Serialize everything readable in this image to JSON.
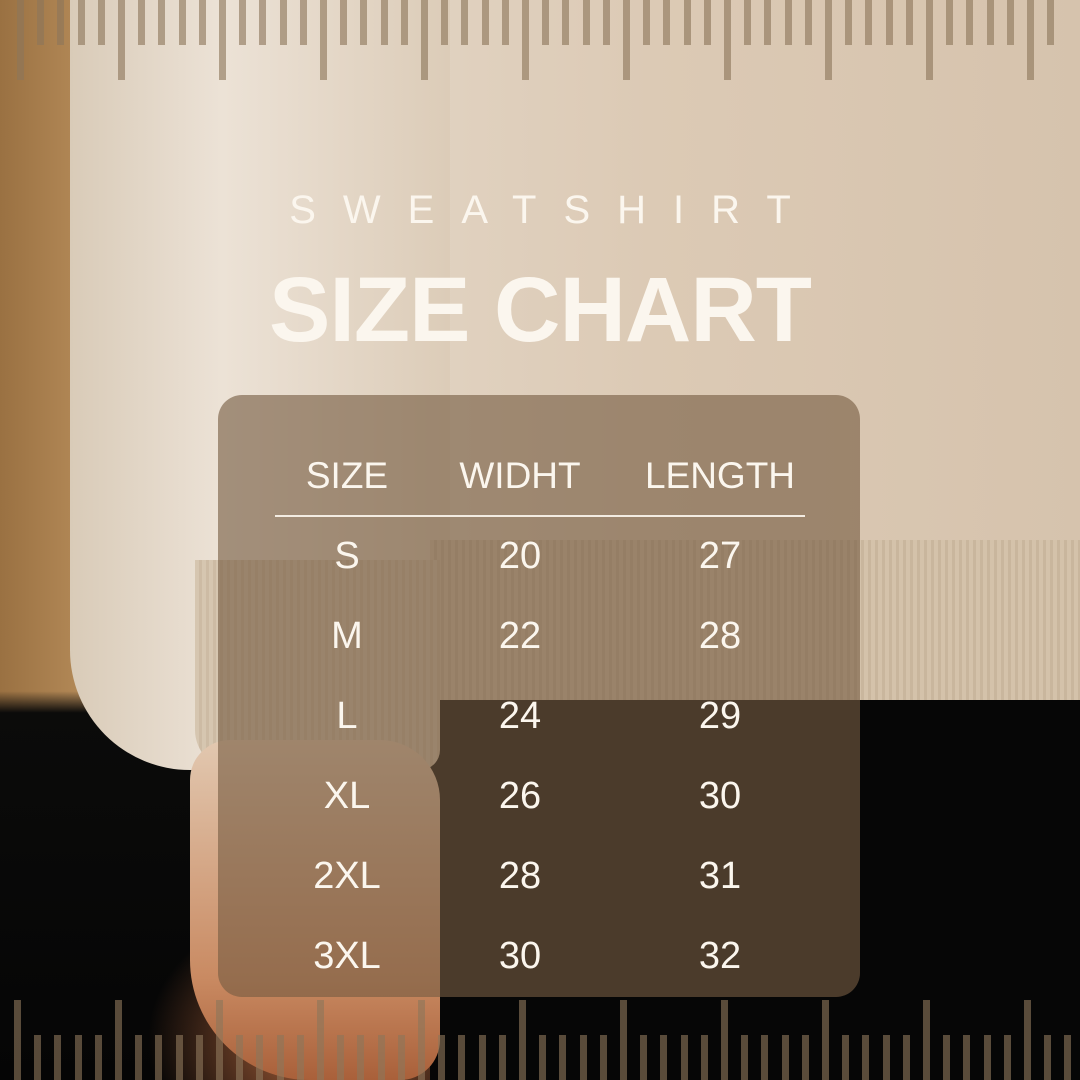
{
  "header": {
    "subtitle": "SWEATSHIRT",
    "title": "SIZE CHART"
  },
  "table": {
    "columns": [
      "SIZE",
      "WIDHT",
      "LENGTH"
    ],
    "rows": [
      [
        "S",
        "20",
        "27"
      ],
      [
        "M",
        "22",
        "28"
      ],
      [
        "L",
        "24",
        "29"
      ],
      [
        "XL",
        "26",
        "30"
      ],
      [
        "2XL",
        "28",
        "31"
      ],
      [
        "3XL",
        "30",
        "32"
      ]
    ]
  },
  "colors": {
    "text": "#fbf6ee",
    "panel": "#765c42",
    "ruler": "#8c765a"
  }
}
